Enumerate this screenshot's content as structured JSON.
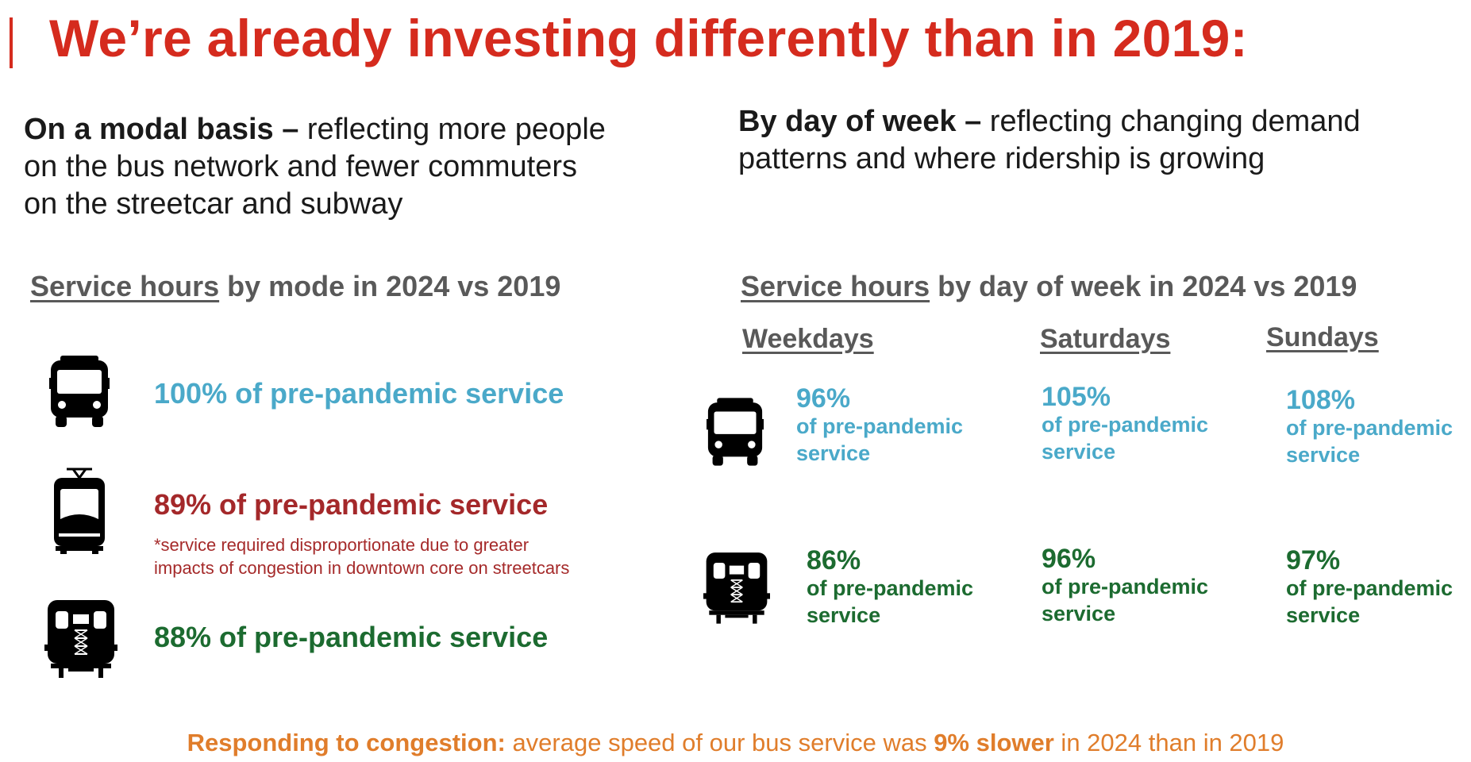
{
  "title": "We’re already investing differently than in 2019:",
  "left_intro": {
    "bold": "On a modal basis –",
    "lines": [
      " reflecting more people",
      "on the bus network and fewer commuters",
      "on the streetcar and subway"
    ]
  },
  "right_intro": {
    "bold": "By day of week –",
    "lines": [
      " reflecting changing demand",
      "patterns and where ridership is growing"
    ]
  },
  "mode_section": {
    "heading_underlined": "Service hours",
    "heading_rest": " by mode in 2024 vs 2019",
    "bus": "100% of pre-pandemic service",
    "streetcar": "89% of pre-pandemic service",
    "streetcar_note_1": "*service required disproportionate due to greater",
    "streetcar_note_2": "impacts of congestion in downtown core on streetcars",
    "subway": "88% of pre-pandemic service"
  },
  "day_section": {
    "heading_underlined": "Service hours",
    "heading_rest": " by day of week in 2024 vs 2019",
    "days": [
      "Weekdays",
      "Saturdays",
      "Sundays"
    ],
    "sub_line1": "of pre-pandemic",
    "sub_line2": "service",
    "bus": [
      "96%",
      "105%",
      "108%"
    ],
    "subway": [
      "86%",
      "96%",
      "97%"
    ]
  },
  "footer": {
    "bold1": "Responding to congestion:",
    "text1": " average speed of our bus service was ",
    "bold2": "9% slower",
    "text2": " in 2024 than in 2019"
  },
  "colors": {
    "title_red": "#d52b1e",
    "bus_blue": "#4aa9c9",
    "streetcar_red": "#a4282a",
    "subway_green": "#1c6b30",
    "footer_orange": "#e07d2b",
    "heading_gray": "#595959"
  },
  "icons": [
    "bus-icon",
    "streetcar-icon",
    "subway-icon"
  ]
}
